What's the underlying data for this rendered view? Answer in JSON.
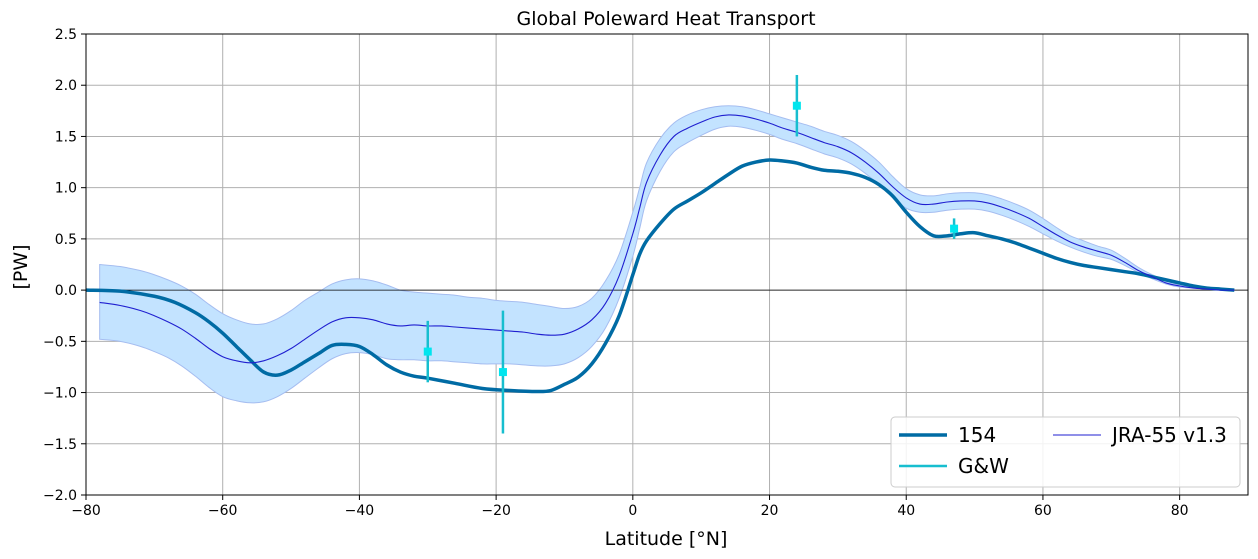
{
  "chart_data": {
    "type": "line",
    "title": "Global Poleward Heat Transport",
    "xlabel": "Latitude [°N]",
    "ylabel": "[PW]",
    "xlim": [
      -80,
      90
    ],
    "ylim": [
      -2.0,
      2.5
    ],
    "xticks": [
      -80,
      -60,
      -40,
      -20,
      0,
      20,
      40,
      60,
      80
    ],
    "xtick_labels": [
      "−80",
      "−60",
      "−40",
      "−20",
      "0",
      "20",
      "40",
      "60",
      "80"
    ],
    "yticks": [
      -2.0,
      -1.5,
      -1.0,
      -0.5,
      0.0,
      0.5,
      1.0,
      1.5,
      2.0,
      2.5
    ],
    "ytick_labels": [
      "−2.0",
      "−1.5",
      "−1.0",
      "−0.5",
      "0.0",
      "0.5",
      "1.0",
      "1.5",
      "2.0",
      "2.5"
    ],
    "grid": true,
    "legend_position": "lower-right",
    "colors": {
      "model": "#006ba4",
      "obs": "#17becf",
      "obs_marker": "#00e5ee",
      "reanalysis": "#1f1fd0",
      "band_fill": "#c3e3ff",
      "band_edge": "#a5bdf0"
    },
    "series": [
      {
        "name": "154",
        "style": "thick-line",
        "x": [
          -80,
          -75,
          -70,
          -67,
          -64,
          -62,
          -60,
          -58,
          -56,
          -54,
          -52,
          -50,
          -48,
          -46,
          -44,
          -42,
          -40,
          -38,
          -36,
          -34,
          -32,
          -30,
          -26,
          -22,
          -18,
          -14,
          -12,
          -10,
          -8,
          -6,
          -4,
          -2,
          0,
          1,
          2,
          4,
          6,
          8,
          10,
          12,
          14,
          16,
          18,
          20,
          22,
          24,
          26,
          28,
          30,
          32,
          34,
          36,
          38,
          40,
          42,
          44,
          46,
          48,
          50,
          52,
          54,
          56,
          58,
          60,
          62,
          64,
          66,
          68,
          70,
          72,
          74,
          76,
          78,
          80,
          82,
          84,
          86,
          88
        ],
        "y": [
          0.0,
          -0.01,
          -0.06,
          -0.12,
          -0.22,
          -0.31,
          -0.42,
          -0.55,
          -0.68,
          -0.8,
          -0.83,
          -0.78,
          -0.7,
          -0.62,
          -0.54,
          -0.53,
          -0.55,
          -0.63,
          -0.73,
          -0.8,
          -0.84,
          -0.86,
          -0.91,
          -0.96,
          -0.98,
          -0.99,
          -0.98,
          -0.92,
          -0.85,
          -0.72,
          -0.52,
          -0.25,
          0.15,
          0.35,
          0.48,
          0.65,
          0.79,
          0.87,
          0.95,
          1.04,
          1.13,
          1.21,
          1.25,
          1.27,
          1.26,
          1.24,
          1.2,
          1.17,
          1.16,
          1.14,
          1.1,
          1.03,
          0.92,
          0.76,
          0.62,
          0.53,
          0.53,
          0.55,
          0.56,
          0.53,
          0.5,
          0.46,
          0.41,
          0.36,
          0.31,
          0.27,
          0.24,
          0.22,
          0.2,
          0.18,
          0.16,
          0.13,
          0.1,
          0.07,
          0.04,
          0.02,
          0.01,
          0.0
        ]
      },
      {
        "name": "G&W",
        "style": "errorbar",
        "points": [
          {
            "x": -30,
            "y": -0.6,
            "lo": -0.9,
            "hi": -0.3
          },
          {
            "x": -19,
            "y": -0.8,
            "lo": -1.4,
            "hi": -0.2
          },
          {
            "x": 24,
            "y": 1.8,
            "lo": 1.5,
            "hi": 2.1
          },
          {
            "x": 47,
            "y": 0.6,
            "lo": 0.5,
            "hi": 0.7
          }
        ]
      },
      {
        "name": "JRA-55 v1.3",
        "style": "thin-line-with-band",
        "x": [
          -78,
          -75,
          -72,
          -70,
          -68,
          -66,
          -64,
          -62,
          -60,
          -58,
          -56,
          -54,
          -52,
          -50,
          -48,
          -46,
          -44,
          -42,
          -40,
          -38,
          -36,
          -34,
          -32,
          -30,
          -28,
          -26,
          -24,
          -22,
          -20,
          -18,
          -16,
          -14,
          -12,
          -10,
          -8,
          -6,
          -4,
          -2,
          0,
          1,
          2,
          4,
          6,
          8,
          10,
          12,
          14,
          16,
          18,
          20,
          22,
          24,
          26,
          28,
          30,
          32,
          34,
          36,
          38,
          40,
          42,
          44,
          46,
          48,
          50,
          52,
          54,
          56,
          58,
          60,
          62,
          64,
          66,
          68,
          70,
          72,
          74,
          76,
          78,
          80,
          82,
          84,
          86,
          88
        ],
        "y": [
          -0.12,
          -0.15,
          -0.2,
          -0.25,
          -0.31,
          -0.38,
          -0.47,
          -0.57,
          -0.65,
          -0.69,
          -0.71,
          -0.69,
          -0.64,
          -0.57,
          -0.48,
          -0.39,
          -0.31,
          -0.27,
          -0.27,
          -0.29,
          -0.33,
          -0.35,
          -0.34,
          -0.35,
          -0.35,
          -0.36,
          -0.37,
          -0.38,
          -0.39,
          -0.4,
          -0.41,
          -0.43,
          -0.44,
          -0.43,
          -0.38,
          -0.29,
          -0.13,
          0.14,
          0.55,
          0.8,
          1.05,
          1.32,
          1.5,
          1.58,
          1.64,
          1.69,
          1.71,
          1.7,
          1.67,
          1.63,
          1.58,
          1.54,
          1.49,
          1.44,
          1.4,
          1.34,
          1.25,
          1.14,
          1.01,
          0.9,
          0.84,
          0.84,
          0.86,
          0.87,
          0.87,
          0.85,
          0.81,
          0.76,
          0.7,
          0.62,
          0.54,
          0.47,
          0.42,
          0.38,
          0.34,
          0.27,
          0.19,
          0.13,
          0.07,
          0.04,
          0.02,
          0.01,
          0.0,
          0.0
        ],
        "band_lo": [
          -0.48,
          -0.5,
          -0.55,
          -0.6,
          -0.66,
          -0.74,
          -0.84,
          -0.95,
          -1.04,
          -1.08,
          -1.1,
          -1.09,
          -1.04,
          -0.96,
          -0.86,
          -0.76,
          -0.67,
          -0.62,
          -0.61,
          -0.63,
          -0.67,
          -0.68,
          -0.68,
          -0.69,
          -0.69,
          -0.7,
          -0.71,
          -0.72,
          -0.72,
          -0.72,
          -0.73,
          -0.74,
          -0.74,
          -0.72,
          -0.66,
          -0.55,
          -0.37,
          -0.08,
          0.33,
          0.6,
          0.87,
          1.16,
          1.35,
          1.44,
          1.51,
          1.57,
          1.6,
          1.59,
          1.56,
          1.52,
          1.47,
          1.43,
          1.38,
          1.33,
          1.29,
          1.23,
          1.14,
          1.03,
          0.91,
          0.8,
          0.76,
          0.76,
          0.78,
          0.79,
          0.79,
          0.77,
          0.73,
          0.68,
          0.62,
          0.55,
          0.48,
          0.42,
          0.37,
          0.33,
          0.3,
          0.24,
          0.17,
          0.11,
          0.06,
          0.03,
          0.02,
          0.01,
          0.0,
          0.0
        ],
        "band_hi": [
          0.25,
          0.23,
          0.19,
          0.15,
          0.1,
          0.04,
          -0.04,
          -0.14,
          -0.23,
          -0.29,
          -0.33,
          -0.33,
          -0.28,
          -0.2,
          -0.1,
          -0.02,
          0.06,
          0.1,
          0.11,
          0.09,
          0.05,
          0.0,
          -0.02,
          -0.03,
          -0.04,
          -0.05,
          -0.07,
          -0.08,
          -0.1,
          -0.11,
          -0.12,
          -0.14,
          -0.16,
          -0.18,
          -0.16,
          -0.08,
          0.09,
          0.35,
          0.76,
          1.0,
          1.24,
          1.48,
          1.63,
          1.71,
          1.76,
          1.79,
          1.8,
          1.79,
          1.76,
          1.72,
          1.68,
          1.64,
          1.6,
          1.55,
          1.51,
          1.45,
          1.36,
          1.25,
          1.11,
          0.99,
          0.93,
          0.92,
          0.94,
          0.95,
          0.95,
          0.93,
          0.89,
          0.84,
          0.78,
          0.7,
          0.61,
          0.53,
          0.48,
          0.43,
          0.39,
          0.31,
          0.22,
          0.15,
          0.09,
          0.05,
          0.03,
          0.01,
          0.0,
          0.0
        ]
      }
    ]
  }
}
